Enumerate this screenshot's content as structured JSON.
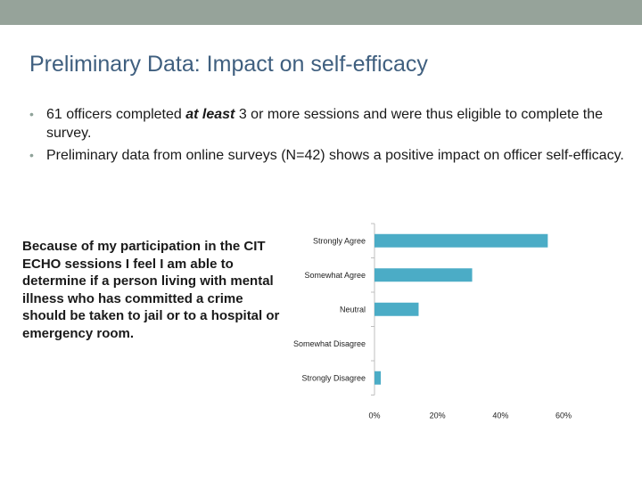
{
  "slide": {
    "title": "Preliminary Data: Impact on self-efficacy",
    "bullets": [
      {
        "before": "61 officers completed ",
        "emph": "at least",
        "after": " 3 or more sessions and were thus eligible to complete the survey."
      },
      {
        "before": "Preliminary data from online surveys (N=42) shows a positive impact on officer self-efficacy.",
        "emph": "",
        "after": ""
      }
    ],
    "bullet_char": "•",
    "question": "Because of my participation in the CIT ECHO sessions I feel I am able to determine if a person living with mental illness who has committed a crime should be taken to jail or to a hospital or emergency room."
  },
  "colors": {
    "bar": "#4bacc6",
    "top_band": "#96a39a",
    "title": "#3f5f7f"
  },
  "chart_data": {
    "type": "bar",
    "orientation": "horizontal",
    "categories": [
      "Strongly Agree",
      "Somewhat Agree",
      "Neutral",
      "Somewhat Disagree",
      "Strongly Disagree"
    ],
    "values": [
      55,
      31,
      14,
      0,
      2
    ],
    "unit": "%",
    "xlim": [
      0,
      60
    ],
    "xticks": [
      "0%",
      "20%",
      "40%",
      "60%"
    ],
    "title": "",
    "xlabel": "",
    "ylabel": "",
    "grid": false,
    "legend": "none"
  }
}
